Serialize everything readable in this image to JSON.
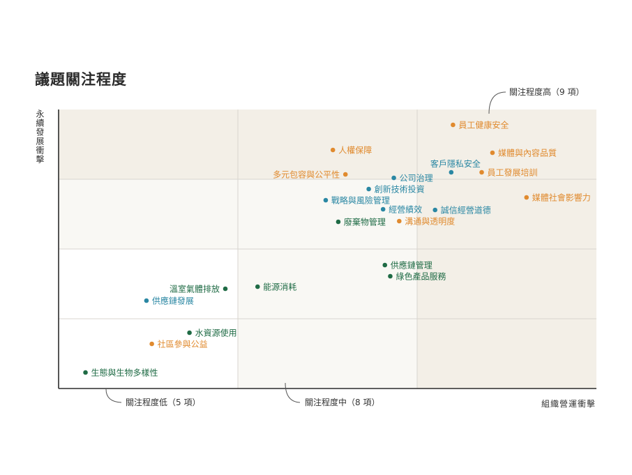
{
  "title": "議題關注程度",
  "chart_data": {
    "type": "scatter",
    "title": "議題關注程度",
    "xlabel": "組織營運衝擊",
    "ylabel": "永續發展衝擊",
    "xlim": [
      0,
      3
    ],
    "ylim": [
      0,
      4
    ],
    "grid": true,
    "colors": {
      "orange": "#e08a2e",
      "blue": "#2a87a3",
      "green": "#1f6b45",
      "zone_low": "#ffffff",
      "zone_mid": "#f9f8f4",
      "zone_high": "#f3efe7"
    },
    "zones": [
      {
        "level": "low",
        "label": "關注程度低（5 項）"
      },
      {
        "level": "mid",
        "label": "關注程度中（8 項）"
      },
      {
        "level": "high",
        "label": "關注程度高（9 項）"
      }
    ],
    "points": [
      {
        "label": "員工健康安全",
        "x": 2.2,
        "y": 3.78,
        "color": "orange",
        "side": "right"
      },
      {
        "label": "媒體與內容品質",
        "x": 2.42,
        "y": 3.38,
        "color": "orange",
        "side": "right"
      },
      {
        "label": "人權保障",
        "x": 1.53,
        "y": 3.42,
        "color": "orange",
        "side": "right"
      },
      {
        "label": "客戶隱私安全",
        "x": 2.19,
        "y": 3.1,
        "color": "blue",
        "side": "left",
        "above": true
      },
      {
        "label": "員工發展培訓",
        "x": 2.36,
        "y": 3.1,
        "color": "orange",
        "side": "right"
      },
      {
        "label": "多元包容與公平性",
        "x": 1.6,
        "y": 3.07,
        "color": "orange",
        "side": "left"
      },
      {
        "label": "公司治理",
        "x": 1.87,
        "y": 3.02,
        "color": "blue",
        "side": "right"
      },
      {
        "label": "媒體社會影響力",
        "x": 2.61,
        "y": 2.74,
        "color": "orange",
        "side": "right"
      },
      {
        "label": "創新技術投資",
        "x": 1.73,
        "y": 2.86,
        "color": "blue",
        "side": "right"
      },
      {
        "label": "戰略與風險管理",
        "x": 1.49,
        "y": 2.7,
        "color": "blue",
        "side": "right"
      },
      {
        "label": "經營績效",
        "x": 1.81,
        "y": 2.57,
        "color": "blue",
        "side": "right"
      },
      {
        "label": "誠信經營道德",
        "x": 2.1,
        "y": 2.56,
        "color": "blue",
        "side": "right"
      },
      {
        "label": "廢棄物管理",
        "x": 1.56,
        "y": 2.39,
        "color": "green",
        "side": "right"
      },
      {
        "label": "溝通與透明度",
        "x": 1.9,
        "y": 2.4,
        "color": "orange",
        "side": "right"
      },
      {
        "label": "供應鏈管理",
        "x": 1.82,
        "y": 1.77,
        "color": "green",
        "side": "right"
      },
      {
        "label": "綠色產品服務",
        "x": 1.85,
        "y": 1.61,
        "color": "green",
        "side": "right"
      },
      {
        "label": "能源消耗",
        "x": 1.11,
        "y": 1.46,
        "color": "green",
        "side": "right"
      },
      {
        "label": "溫室氣體排放",
        "x": 0.93,
        "y": 1.43,
        "color": "green",
        "side": "left"
      },
      {
        "label": "供應鏈發展",
        "x": 0.49,
        "y": 1.26,
        "color": "blue",
        "side": "right"
      },
      {
        "label": "水資源使用",
        "x": 0.73,
        "y": 0.8,
        "color": "green",
        "side": "right"
      },
      {
        "label": "社區參與公益",
        "x": 0.52,
        "y": 0.64,
        "color": "orange",
        "side": "right"
      },
      {
        "label": "生態與生物多樣性",
        "x": 0.15,
        "y": 0.23,
        "color": "green",
        "side": "right"
      }
    ]
  }
}
